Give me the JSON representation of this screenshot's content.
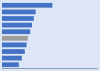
{
  "chart_data": {
    "type": "bar",
    "orientation": "horizontal",
    "categories": [
      null,
      null,
      null,
      null,
      null,
      null,
      null,
      null,
      null,
      null
    ],
    "values": [
      4200,
      2800,
      2650,
      2500,
      2350,
      2150,
      2050,
      1900,
      1650,
      1400
    ],
    "colors": [
      "#4472c4",
      "#4472c4",
      "#4472c4",
      "#4472c4",
      "#4472c4",
      "#9e9e9e",
      "#4472c4",
      "#4472c4",
      "#4472c4",
      "#4472c4"
    ],
    "xlim": [
      0,
      8000
    ],
    "tick_labels": false
  }
}
